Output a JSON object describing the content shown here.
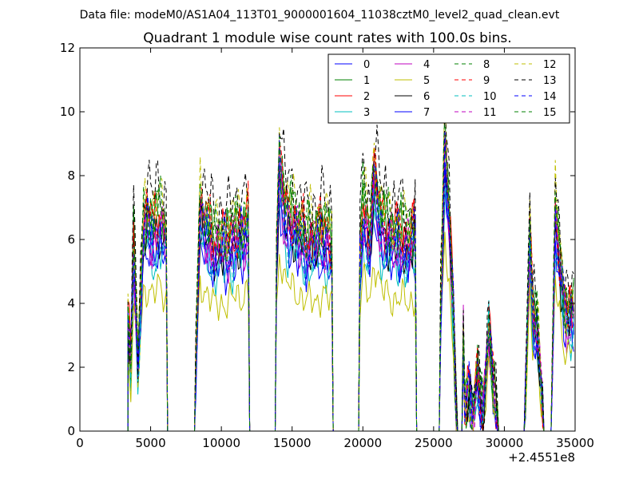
{
  "figure": {
    "suptitle": "Data file: modeM0/AS1A04_113T01_9000001604_11038cztM0_level2_quad_clean.evt"
  },
  "chart_data": {
    "type": "line",
    "title": "Quadrant 1 module wise count rates with 100.0s bins.",
    "xlabel": "",
    "ylabel": "",
    "x_offset_label": "+2.4551e8",
    "xlim": [
      0,
      35000
    ],
    "ylim": [
      0,
      12
    ],
    "x_ticks": [
      "0",
      "5000",
      "10000",
      "15000",
      "20000",
      "25000",
      "30000",
      "35000"
    ],
    "y_ticks": [
      "0",
      "2",
      "4",
      "6",
      "8",
      "10",
      "12"
    ],
    "grid": false,
    "legend_position": "top-right",
    "legend_columns": 4,
    "segments": [
      {
        "start": 3400,
        "end": 6100
      },
      {
        "start": 8200,
        "end": 11900
      },
      {
        "start": 13900,
        "end": 17800
      },
      {
        "start": 19800,
        "end": 23700
      },
      {
        "start": 25500,
        "end": 26600
      },
      {
        "start": 27100,
        "end": 29500
      },
      {
        "start": 31500,
        "end": 32700
      },
      {
        "start": 33400,
        "end": 34900
      }
    ],
    "series": [
      {
        "name": "0",
        "color": "#0000ff",
        "dashed": false,
        "level": 0.8,
        "phase": 0.3
      },
      {
        "name": "1",
        "color": "#008000",
        "dashed": false,
        "level": 0.94,
        "phase": 1.1
      },
      {
        "name": "2",
        "color": "#ff0000",
        "dashed": false,
        "level": 0.93,
        "phase": 2.0
      },
      {
        "name": "3",
        "color": "#00bfbf",
        "dashed": false,
        "level": 0.78,
        "phase": 2.8
      },
      {
        "name": "4",
        "color": "#bf00bf",
        "dashed": false,
        "level": 0.85,
        "phase": 3.7
      },
      {
        "name": "5",
        "color": "#bfbf00",
        "dashed": false,
        "level": 0.62,
        "phase": 4.4
      },
      {
        "name": "6",
        "color": "#000000",
        "dashed": false,
        "level": 0.86,
        "phase": 5.2
      },
      {
        "name": "7",
        "color": "#0000ff",
        "dashed": false,
        "level": 0.82,
        "phase": 6.1
      },
      {
        "name": "8",
        "color": "#008000",
        "dashed": true,
        "level": 0.97,
        "phase": 0.7
      },
      {
        "name": "9",
        "color": "#ff0000",
        "dashed": true,
        "level": 0.95,
        "phase": 1.6
      },
      {
        "name": "10",
        "color": "#00bfbf",
        "dashed": true,
        "level": 0.83,
        "phase": 2.4
      },
      {
        "name": "11",
        "color": "#bf00bf",
        "dashed": true,
        "level": 0.88,
        "phase": 3.3
      },
      {
        "name": "12",
        "color": "#bfbf00",
        "dashed": true,
        "level": 1.0,
        "phase": 4.0
      },
      {
        "name": "13",
        "color": "#000000",
        "dashed": true,
        "level": 1.07,
        "phase": 4.9
      },
      {
        "name": "14",
        "color": "#0000ff",
        "dashed": true,
        "level": 0.9,
        "phase": 5.7
      },
      {
        "name": "15",
        "color": "#008000",
        "dashed": true,
        "level": 0.96,
        "phase": 0.1
      }
    ]
  }
}
